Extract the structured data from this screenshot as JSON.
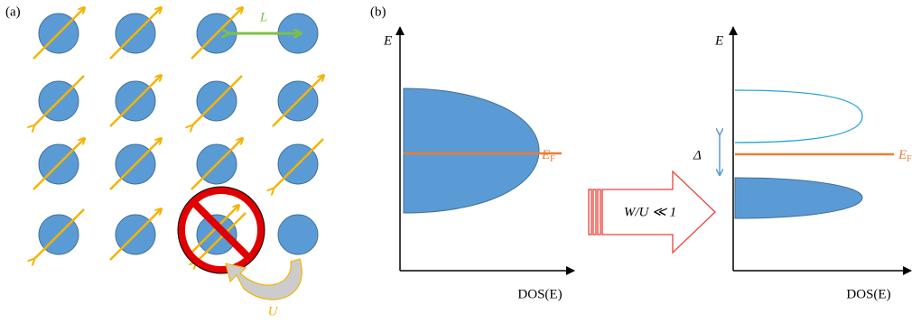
{
  "panel_a": {
    "label": "(a)",
    "hop_length": "L",
    "interaction": "U"
  },
  "panel_b": {
    "label": "(b)",
    "left_plot": {
      "y_axis": "E",
      "x_axis": "DOS(E)",
      "fermi": {
        "symbol": "E",
        "subscript": "F"
      }
    },
    "transition": "W/U ≪ 1",
    "right_plot": {
      "y_axis": "E",
      "x_axis": "DOS(E)",
      "gap": "Δ",
      "fermi": {
        "symbol": "E",
        "subscript": "F"
      }
    }
  }
}
